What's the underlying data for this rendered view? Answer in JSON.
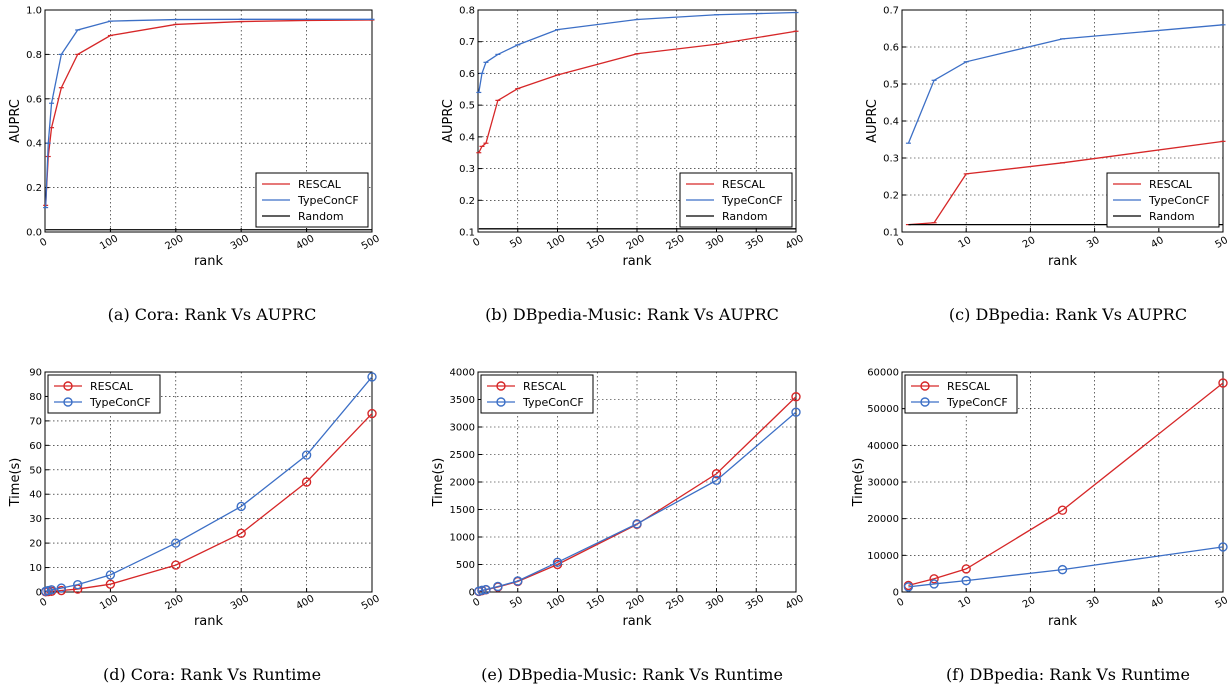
{
  "colors": {
    "RESCAL": "#d62728",
    "TypeConCF": "#3c6fc6",
    "Random": "#000000"
  },
  "chart_data": [
    {
      "type": "line",
      "caption": "(a) Cora: Rank Vs AUPRC",
      "xlabel": "rank",
      "ylabel": "AUPRC",
      "xlim": [
        0,
        500
      ],
      "ylim": [
        0.0,
        1.0
      ],
      "xticks": [
        0,
        100,
        200,
        300,
        400,
        500
      ],
      "xtick_labels": [
        "0",
        "100",
        "200",
        "300",
        "400",
        "500"
      ],
      "yticks": [
        0.0,
        0.2,
        0.4,
        0.6,
        0.8,
        1.0
      ],
      "ytick_labels": [
        "0.0",
        "0.2",
        "0.4",
        "0.6",
        "0.8",
        "1.0"
      ],
      "legend_loc": "bottom-right",
      "markers": false,
      "series": [
        {
          "name": "RESCAL",
          "x": [
            1,
            5,
            10,
            25,
            50,
            100,
            200,
            300,
            400,
            500
          ],
          "y": [
            0.12,
            0.34,
            0.47,
            0.65,
            0.8,
            0.885,
            0.935,
            0.948,
            0.953,
            0.955
          ]
        },
        {
          "name": "TypeConCF",
          "x": [
            1,
            5,
            10,
            25,
            50,
            100,
            200,
            300,
            400,
            500
          ],
          "y": [
            0.11,
            0.4,
            0.58,
            0.8,
            0.91,
            0.95,
            0.957,
            0.958,
            0.958,
            0.958
          ]
        },
        {
          "name": "Random",
          "x": [
            1,
            500
          ],
          "y": [
            0.01,
            0.01
          ]
        }
      ]
    },
    {
      "type": "line",
      "caption": "(b) DBpedia-Music: Rank Vs AUPRC",
      "xlabel": "rank",
      "ylabel": "AUPRC",
      "xlim": [
        0,
        400
      ],
      "ylim": [
        0.1,
        0.8
      ],
      "xticks": [
        0,
        50,
        100,
        150,
        200,
        250,
        300,
        350,
        400
      ],
      "xtick_labels": [
        "0",
        "50",
        "100",
        "150",
        "200",
        "250",
        "300",
        "350",
        "400"
      ],
      "yticks": [
        0.1,
        0.2,
        0.3,
        0.4,
        0.5,
        0.6,
        0.7,
        0.8
      ],
      "ytick_labels": [
        "0.1",
        "0.2",
        "0.3",
        "0.4",
        "0.5",
        "0.6",
        "0.7",
        "0.8"
      ],
      "legend_loc": "bottom-right",
      "markers": false,
      "series": [
        {
          "name": "RESCAL",
          "x": [
            1,
            5,
            10,
            25,
            50,
            100,
            200,
            300,
            400
          ],
          "y": [
            0.35,
            0.37,
            0.38,
            0.515,
            0.552,
            0.595,
            0.662,
            0.692,
            0.733
          ]
        },
        {
          "name": "TypeConCF",
          "x": [
            1,
            5,
            10,
            25,
            50,
            100,
            200,
            300,
            400
          ],
          "y": [
            0.54,
            0.6,
            0.635,
            0.66,
            0.69,
            0.738,
            0.77,
            0.785,
            0.792
          ]
        },
        {
          "name": "Random",
          "x": [
            1,
            400
          ],
          "y": [
            0.11,
            0.11
          ]
        }
      ]
    },
    {
      "type": "line",
      "caption": "(c) DBpedia: Rank Vs AUPRC",
      "xlabel": "rank",
      "ylabel": "AUPRC",
      "xlim": [
        0,
        50
      ],
      "ylim": [
        0.1,
        0.7
      ],
      "xticks": [
        0,
        10,
        20,
        30,
        40,
        50
      ],
      "xtick_labels": [
        "0",
        "10",
        "20",
        "30",
        "40",
        "50"
      ],
      "yticks": [
        0.1,
        0.2,
        0.3,
        0.4,
        0.5,
        0.6,
        0.7
      ],
      "ytick_labels": [
        "0.1",
        "0.2",
        "0.3",
        "0.4",
        "0.5",
        "0.6",
        "0.7"
      ],
      "legend_loc": "bottom-right",
      "markers": false,
      "series": [
        {
          "name": "RESCAL",
          "x": [
            1,
            5,
            10,
            25,
            50
          ],
          "y": [
            0.12,
            0.125,
            0.257,
            0.287,
            0.345
          ]
        },
        {
          "name": "TypeConCF",
          "x": [
            1,
            5,
            10,
            25,
            50
          ],
          "y": [
            0.34,
            0.51,
            0.56,
            0.622,
            0.66
          ]
        },
        {
          "name": "Random",
          "x": [
            1,
            50
          ],
          "y": [
            0.12,
            0.12
          ]
        }
      ]
    },
    {
      "type": "line",
      "caption": "(d) Cora: Rank Vs Runtime",
      "xlabel": "rank",
      "ylabel": "Time(s)",
      "xlim": [
        0,
        500
      ],
      "ylim": [
        0,
        90
      ],
      "xticks": [
        0,
        100,
        200,
        300,
        400,
        500
      ],
      "xtick_labels": [
        "0",
        "100",
        "200",
        "300",
        "400",
        "500"
      ],
      "yticks": [
        0,
        10,
        20,
        30,
        40,
        50,
        60,
        70,
        80,
        90
      ],
      "ytick_labels": [
        "0",
        "10",
        "20",
        "30",
        "40",
        "50",
        "60",
        "70",
        "80",
        "90"
      ],
      "legend_loc": "top-left",
      "markers": true,
      "series": [
        {
          "name": "RESCAL",
          "x": [
            1,
            5,
            10,
            25,
            50,
            100,
            200,
            300,
            400,
            500
          ],
          "y": [
            0.1,
            0.2,
            0.3,
            0.6,
            1.2,
            3.2,
            11,
            24,
            45,
            73
          ]
        },
        {
          "name": "TypeConCF",
          "x": [
            1,
            5,
            10,
            25,
            50,
            100,
            200,
            300,
            400,
            500
          ],
          "y": [
            0.3,
            0.6,
            0.9,
            1.6,
            3,
            7,
            20,
            35,
            56,
            88
          ]
        }
      ]
    },
    {
      "type": "line",
      "caption": "(e) DBpedia-Music: Rank Vs Runtime",
      "xlabel": "rank",
      "ylabel": "Time(s)",
      "xlim": [
        0,
        400
      ],
      "ylim": [
        0,
        4000
      ],
      "xticks": [
        0,
        50,
        100,
        150,
        200,
        250,
        300,
        350,
        400
      ],
      "xtick_labels": [
        "0",
        "50",
        "100",
        "150",
        "200",
        "250",
        "300",
        "350",
        "400"
      ],
      "yticks": [
        0,
        500,
        1000,
        1500,
        2000,
        2500,
        3000,
        3500,
        4000
      ],
      "ytick_labels": [
        "0",
        "500",
        "1000",
        "1500",
        "2000",
        "2500",
        "3000",
        "3500",
        "4000"
      ],
      "legend_loc": "top-left",
      "markers": true,
      "series": [
        {
          "name": "RESCAL",
          "x": [
            1,
            5,
            10,
            25,
            50,
            100,
            200,
            300,
            400
          ],
          "y": [
            10,
            25,
            40,
            90,
            190,
            500,
            1230,
            2150,
            3550
          ]
        },
        {
          "name": "TypeConCF",
          "x": [
            1,
            5,
            10,
            25,
            50,
            100,
            200,
            300,
            400
          ],
          "y": [
            15,
            30,
            45,
            100,
            200,
            540,
            1240,
            2030,
            3270
          ]
        }
      ]
    },
    {
      "type": "line",
      "caption": "(f) DBpedia: Rank Vs Runtime",
      "xlabel": "rank",
      "ylabel": "Time(s)",
      "xlim": [
        0,
        50
      ],
      "ylim": [
        0,
        60000
      ],
      "xticks": [
        0,
        10,
        20,
        30,
        40,
        50
      ],
      "xtick_labels": [
        "0",
        "10",
        "20",
        "30",
        "40",
        "50"
      ],
      "yticks": [
        0,
        10000,
        20000,
        30000,
        40000,
        50000,
        60000
      ],
      "ytick_labels": [
        "0",
        "10000",
        "20000",
        "30000",
        "40000",
        "50000",
        "60000"
      ],
      "legend_loc": "top-left",
      "markers": true,
      "series": [
        {
          "name": "RESCAL",
          "x": [
            1,
            5,
            10,
            25,
            50
          ],
          "y": [
            1800,
            3600,
            6300,
            22300,
            57000
          ]
        },
        {
          "name": "TypeConCF",
          "x": [
            1,
            5,
            10,
            25,
            50
          ],
          "y": [
            1400,
            2200,
            3100,
            6100,
            12300
          ]
        }
      ]
    }
  ]
}
